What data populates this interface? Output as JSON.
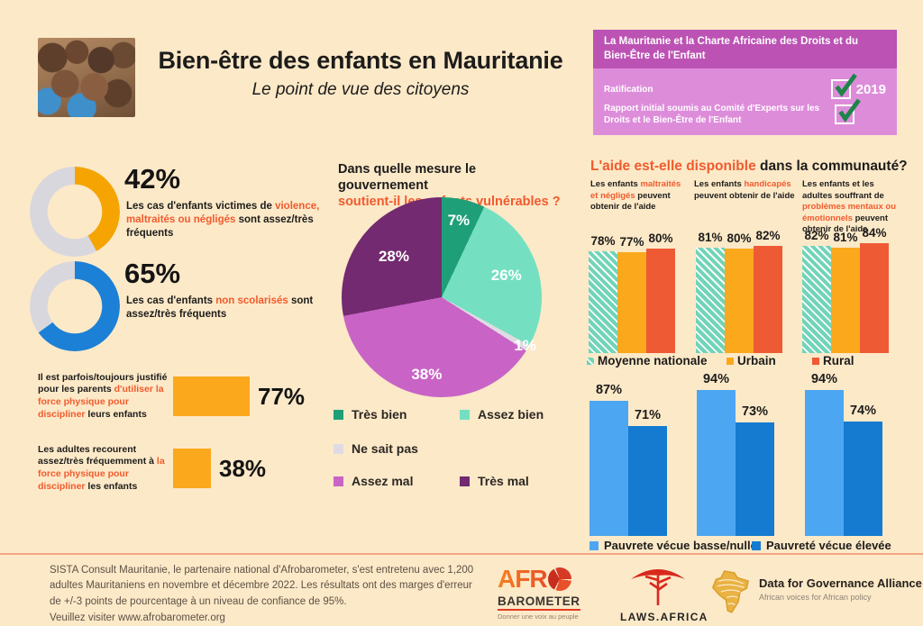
{
  "colors": {
    "accent": "#f15b2e",
    "background": "#fce9c8"
  },
  "header": {
    "title": "Bien-être des enfants en Mauritanie",
    "subtitle": "Le point de vue des citoyens",
    "charter": {
      "title": "La Mauritanie et la Charte Africaine des Droits et du Bien-Être de l'Enfant",
      "rows": [
        {
          "label": "Ratification",
          "year": "2019",
          "checked": true
        },
        {
          "label": "Rapport initial soumis au Comité d'Experts sur les Droits et le Bien-Être de l'Enfant",
          "year": "",
          "checked": true
        }
      ]
    }
  },
  "chart_data": [
    {
      "id": "violence_donut",
      "type": "pie",
      "subtype": "donut",
      "value": 42,
      "label": "42%",
      "color": "#f5a402",
      "track": "#d8d7de",
      "caption": [
        {
          "t": "Les cas d'enfants victimes de "
        },
        {
          "t": "violence, maltraités ou négligés",
          "em": true
        },
        {
          "t": " sont assez/très fréquents"
        }
      ]
    },
    {
      "id": "school_donut",
      "type": "pie",
      "subtype": "donut",
      "value": 65,
      "label": "65%",
      "color": "#1b80d6",
      "track": "#d8d7de",
      "caption": [
        {
          "t": "Les cas d'enfants "
        },
        {
          "t": "non scolarisés",
          "em": true
        },
        {
          "t": " sont assez/très fréquents"
        }
      ]
    },
    {
      "id": "discipline_bars",
      "type": "bar",
      "orientation": "horizontal",
      "color": "#fba81c",
      "values": [
        77,
        38
      ],
      "labels": [
        "77%",
        "38%"
      ],
      "captions": [
        [
          {
            "t": "Il est parfois/toujours justifié pour les parents "
          },
          {
            "t": "d'utiliser la force physique pour discipliner",
            "em": true
          },
          {
            "t": " leurs enfants"
          }
        ],
        [
          {
            "t": "Les adultes recourent assez/très fréquemment à "
          },
          {
            "t": "la force physique pour discipliner",
            "em": true
          },
          {
            "t": " les enfants"
          }
        ]
      ]
    },
    {
      "id": "gov_support_pie",
      "type": "pie",
      "title_line1": "Dans quelle mesure le gouvernement",
      "title_line2": "soutient-il les enfants vulnérables ?",
      "labels": [
        "Très bien",
        "Assez bien",
        "Ne sait pas",
        "Assez mal",
        "Très mal"
      ],
      "values": [
        7,
        26,
        1,
        38,
        28
      ],
      "colors": [
        "#1f9f78",
        "#74e0c1",
        "#e0dbe3",
        "#c964c6",
        "#732a70"
      ],
      "legend_position": "below"
    },
    {
      "id": "aid_availability_bars",
      "type": "bar",
      "title_accent": "L'aide est-elle disponible",
      "title_rest": " dans la communauté?",
      "series": [
        "Moyenne nationale",
        "Urbain",
        "Rural"
      ],
      "series_colors": [
        "#6fd4ba",
        "#fba81c",
        "#ee5a34"
      ],
      "group_captions": [
        [
          {
            "t": "Les enfants "
          },
          {
            "t": "maltraités et négligés",
            "em": true
          },
          {
            "t": " peuvent obtenir de l'aide"
          }
        ],
        [
          {
            "t": "Les enfants "
          },
          {
            "t": "handicapés",
            "em": true
          },
          {
            "t": " peuvent obtenir de l'aide"
          }
        ],
        [
          {
            "t": "Les enfants et les adultes souffrant de "
          },
          {
            "t": "problèmes mentaux ou émotionnels",
            "em": true
          },
          {
            "t": " peuvent obtenir de l'aide"
          }
        ]
      ],
      "groups": [
        [
          78,
          77,
          80
        ],
        [
          81,
          80,
          82
        ],
        [
          82,
          81,
          84
        ]
      ],
      "ylim": [
        0,
        100
      ]
    },
    {
      "id": "poverty_bars",
      "type": "bar",
      "series": [
        "Pauvrete vécue basse/nulle",
        "Pauvreté vécue élevée"
      ],
      "series_colors": [
        "#4da6f2",
        "#147bd1"
      ],
      "groups": [
        [
          87,
          71
        ],
        [
          94,
          73
        ],
        [
          94,
          74
        ]
      ],
      "ylim": [
        0,
        100
      ]
    }
  ],
  "footer": {
    "note": "SISTA Consult Mauritanie, le partenaire national d'Afrobarometer, s'est entretenu avec 1,200 adultes Mauritaniens en novembre et décembre 2022. Les résultats ont des marges d'erreur de +/-3 points de pourcentage à un niveau de confiance de 95%.",
    "link": "Veuillez visiter www.afrobarometer.org",
    "logos": {
      "afrobarometer": {
        "word1": "AFR",
        "word2": "BAROMETER",
        "tagline": "Donner une voix au peuple"
      },
      "laws_africa": {
        "label": "LAWS.AFRICA"
      },
      "dga": {
        "title": "Data for Governance Alliance",
        "subtitle": "African voices for African policy"
      }
    }
  }
}
